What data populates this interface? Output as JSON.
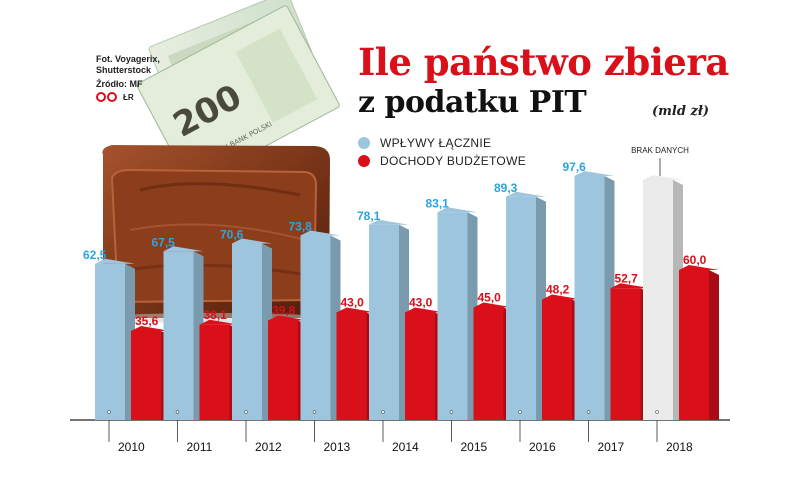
{
  "credits": {
    "photo_line1": "Fot. Voyagerix,",
    "photo_line2": "Shutterstock",
    "source": "Źródło: MF",
    "author": "ŁR"
  },
  "illustration": {
    "banknote_value": "200",
    "banknote_text": "NARODOWY BANK POLSKI"
  },
  "colors": {
    "total": "#9dc5de",
    "total_label": "#2aa5de",
    "budget": "#d90f1a",
    "budget_label": "#d90f1a",
    "no_data_bar": "#ebebeb"
  },
  "chart_data": {
    "type": "bar",
    "title": "Ile państwo zbiera",
    "subtitle": "z podatku PIT",
    "unit": "(mld zł)",
    "xlabel": "",
    "ylabel": "",
    "ylim": [
      0,
      100
    ],
    "grid": false,
    "legend_position": "top",
    "categories": [
      "2010",
      "2011",
      "2012",
      "2013",
      "2014",
      "2015",
      "2016",
      "2017",
      "2018"
    ],
    "series": [
      {
        "name": "WPŁYWY ŁĄCZNIE",
        "values": [
          62.5,
          67.5,
          70.6,
          73.8,
          78.1,
          83.1,
          89.3,
          97.6,
          null
        ],
        "labels": [
          "62,5",
          "67,5",
          "70,6",
          "73,8",
          "78,1",
          "83,1",
          "89,3",
          "97,6",
          ""
        ]
      },
      {
        "name": "DOCHODY BUDŻETOWE",
        "values": [
          35.6,
          38.1,
          39.8,
          43.0,
          43.0,
          45.0,
          48.2,
          52.7,
          60.0
        ],
        "labels": [
          "35,6",
          "38,1",
          "39,8",
          "43,0",
          "43,0",
          "45,0",
          "48,2",
          "52,7",
          "60,0"
        ]
      }
    ],
    "annotations": [
      {
        "category": "2018",
        "text": "BRAK DANYCH"
      }
    ]
  }
}
